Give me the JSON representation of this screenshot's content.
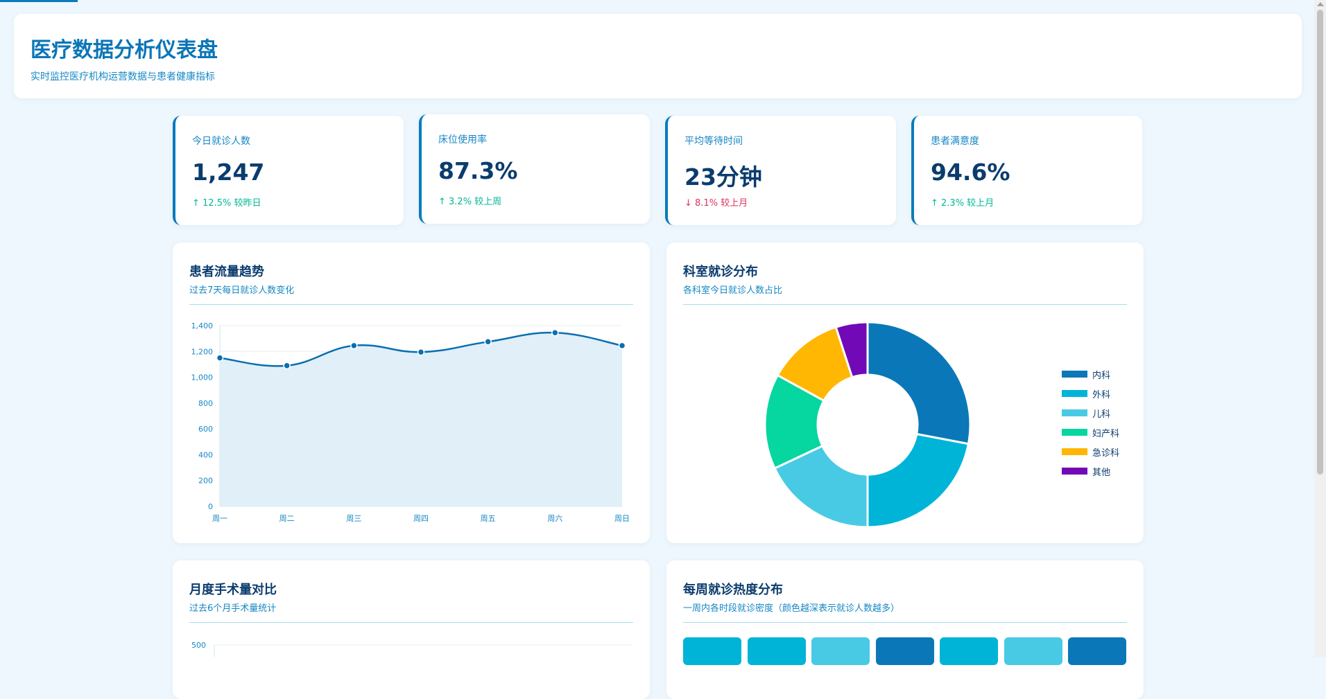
{
  "header": {
    "title": "医疗数据分析仪表盘",
    "subtitle": "实时监控医疗机构运营数据与患者健康指标"
  },
  "stats": [
    {
      "label": "今日就诊人数",
      "value": "1,247",
      "trend": "↑ 12.5% 较昨日",
      "direction": "up"
    },
    {
      "label": "床位使用率",
      "value": "87.3%",
      "trend": "↑ 3.2% 较上周",
      "direction": "up"
    },
    {
      "label": "平均等待时间",
      "value": "23分钟",
      "trend": "↓ 8.1% 较上月",
      "direction": "down"
    },
    {
      "label": "患者满意度",
      "value": "94.6%",
      "trend": "↑ 2.3% 较上月",
      "direction": "up"
    }
  ],
  "panels": {
    "flow": {
      "title": "患者流量趋势",
      "subtitle": "过去7天每日就诊人数变化"
    },
    "dept": {
      "title": "科室就诊分布",
      "subtitle": "各科室今日就诊人数占比"
    },
    "surgery": {
      "title": "月度手术量对比",
      "subtitle": "过去6个月手术量统计"
    },
    "heat": {
      "title": "每周就诊热度分布",
      "subtitle": "一周内各时段就诊密度（颜色越深表示就诊人数越多）"
    }
  },
  "chart_data": [
    {
      "type": "area",
      "title": "患者流量趋势",
      "categories": [
        "周一",
        "周二",
        "周三",
        "周四",
        "周五",
        "周六",
        "周日"
      ],
      "values": [
        1150,
        1090,
        1245,
        1195,
        1275,
        1345,
        1245
      ],
      "ylim": [
        0,
        1400
      ],
      "yticks": [
        "0",
        "200",
        "400",
        "600",
        "800",
        "1,000",
        "1,200",
        "1,400"
      ],
      "color": "#0a6eb0",
      "fill": "#e0eff8",
      "grid": true
    },
    {
      "type": "pie",
      "title": "科室就诊分布",
      "donut": true,
      "legend_position": "right",
      "slices": [
        {
          "label": "内科",
          "value": 28,
          "color": "#0a78b8"
        },
        {
          "label": "外科",
          "value": 22,
          "color": "#00b4d8"
        },
        {
          "label": "儿科",
          "value": 18,
          "color": "#48cae4"
        },
        {
          "label": "妇产科",
          "value": 15,
          "color": "#06d6a0"
        },
        {
          "label": "急诊科",
          "value": 12,
          "color": "#ffb703"
        },
        {
          "label": "其他",
          "value": 5,
          "color": "#7209b7"
        }
      ]
    },
    {
      "type": "bar",
      "title": "月度手术量对比",
      "yticks_visible": [
        "500"
      ]
    },
    {
      "type": "heatmap",
      "title": "每周就诊热度分布",
      "visible_cells": [
        {
          "color": "#00b4d8"
        },
        {
          "color": "#00b4d8"
        },
        {
          "color": "#48cae4"
        },
        {
          "color": "#0a78b8"
        },
        {
          "color": "#00b4d8"
        },
        {
          "color": "#48cae4"
        },
        {
          "color": "#0a78b8"
        }
      ]
    }
  ]
}
